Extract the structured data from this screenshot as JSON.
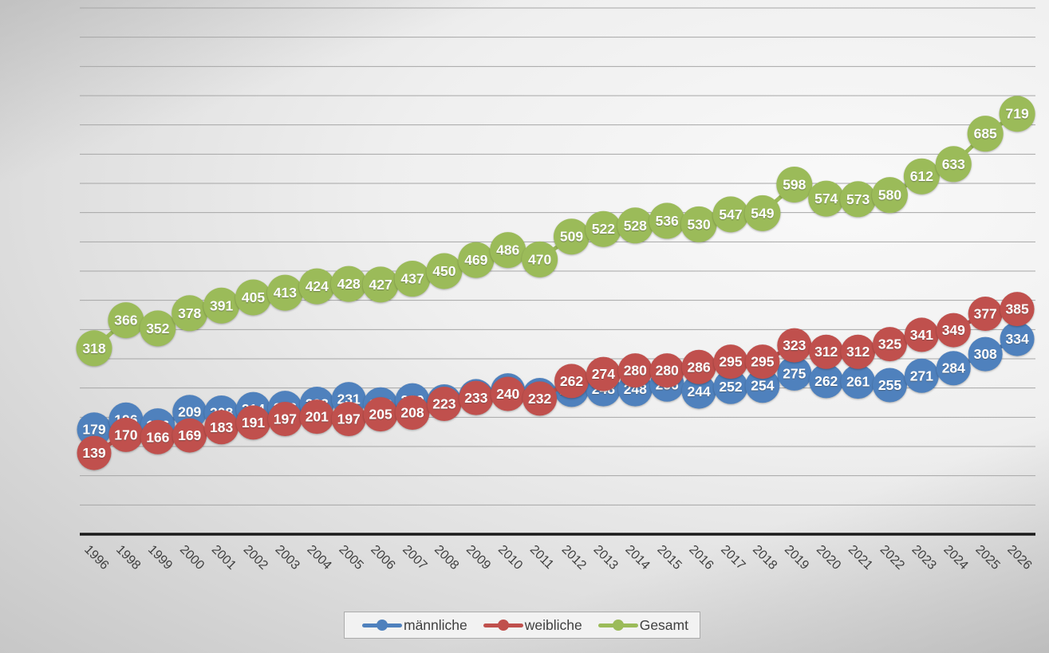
{
  "chart_data": {
    "type": "line",
    "title": "",
    "xlabel": "",
    "ylabel": "",
    "x": [
      "1996",
      "1998",
      "1999",
      "2000",
      "2001",
      "2002",
      "2003",
      "2004",
      "2005",
      "2006",
      "2007",
      "2008",
      "2009",
      "2010",
      "2011",
      "2012",
      "2013",
      "2014",
      "2015",
      "2016",
      "2017",
      "2018",
      "2019",
      "2020",
      "2021",
      "2022",
      "2023",
      "2024",
      "2025",
      "2026"
    ],
    "series": [
      {
        "name": "männliche",
        "color": "#4f81bd",
        "values": [
          179,
          196,
          186,
          209,
          208,
          214,
          216,
          223,
          231,
          222,
          229,
          227,
          236,
          246,
          238,
          247,
          248,
          248,
          256,
          244,
          252,
          254,
          275,
          262,
          261,
          255,
          271,
          284,
          308,
          334
        ]
      },
      {
        "name": "weibliche",
        "color": "#c0504d",
        "values": [
          139,
          170,
          166,
          169,
          183,
          191,
          197,
          201,
          197,
          205,
          208,
          223,
          233,
          240,
          232,
          262,
          274,
          280,
          280,
          286,
          295,
          295,
          323,
          312,
          312,
          325,
          341,
          349,
          377,
          385
        ]
      },
      {
        "name": "Gesamt",
        "color": "#9bbb59",
        "values": [
          318,
          366,
          352,
          378,
          391,
          405,
          413,
          424,
          428,
          427,
          437,
          450,
          469,
          486,
          470,
          509,
          522,
          528,
          536,
          530,
          547,
          549,
          598,
          574,
          573,
          580,
          612,
          633,
          685,
          719
        ]
      }
    ],
    "ylim": [
      0,
      900
    ],
    "gridline_interval": 50,
    "grid": true,
    "legend_position": "bottom",
    "data_labels": "centered white bold values inside round markers",
    "marker_style": "large filled circles",
    "x_tick_rotation": 45
  },
  "legend": {
    "items": [
      {
        "label": "männliche",
        "marker": "blue-line-dot"
      },
      {
        "label": "weibliche",
        "marker": "red-line-dot"
      },
      {
        "label": "Gesamt",
        "marker": "green-line-dot"
      }
    ]
  }
}
